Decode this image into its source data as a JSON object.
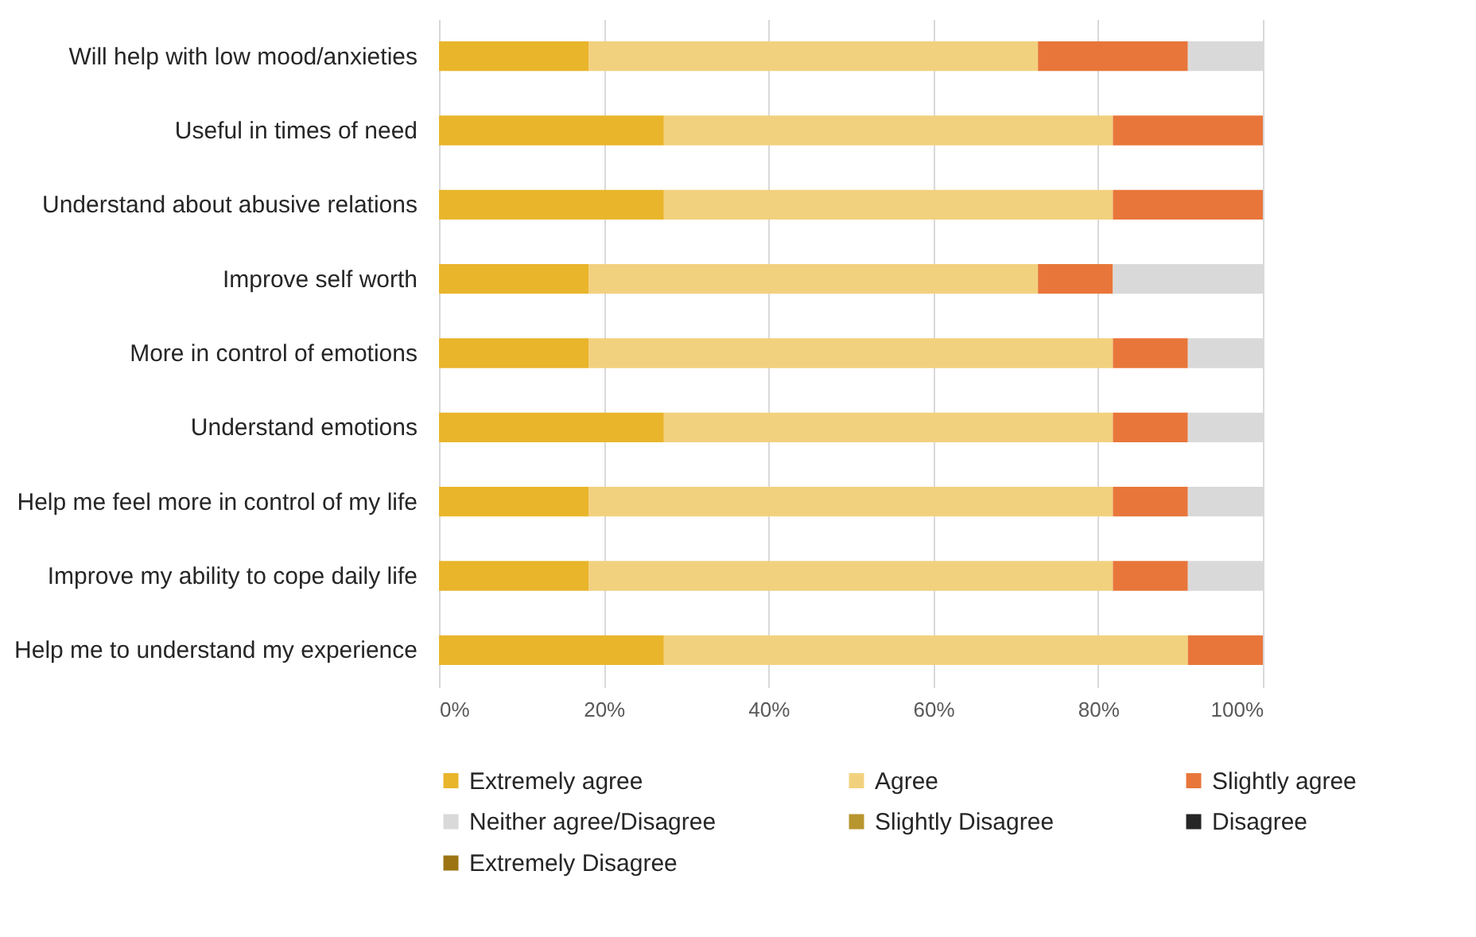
{
  "chart_data": {
    "type": "bar",
    "orientation": "horizontal",
    "stacked": true,
    "categories": [
      "Will help with low mood/anxieties",
      "Useful in times of need",
      "Understand about abusive relations",
      "Improve self worth",
      "More in control of emotions",
      "Understand emotions",
      "Help me feel more in control of my life",
      "Improve my ability to cope daily life",
      "Help me to understand my experience"
    ],
    "series": [
      {
        "name": "Extremely agree",
        "color": "#e9b52b",
        "values": [
          18.2,
          27.3,
          27.3,
          18.2,
          18.2,
          27.3,
          18.2,
          18.2,
          27.3
        ]
      },
      {
        "name": "Agree",
        "color": "#f2d17e",
        "values": [
          54.5,
          54.5,
          54.5,
          54.5,
          63.6,
          54.5,
          63.6,
          63.6,
          63.6
        ]
      },
      {
        "name": "Slightly agree",
        "color": "#e8763a",
        "values": [
          18.2,
          18.2,
          18.2,
          9.1,
          9.1,
          9.1,
          9.1,
          9.1,
          9.1
        ]
      },
      {
        "name": "Neither agree/Disagree",
        "color": "#d9d9d9",
        "values": [
          9.1,
          0,
          0,
          18.2,
          9.1,
          9.1,
          9.1,
          9.1,
          0
        ]
      },
      {
        "name": "Slightly Disagree",
        "color": "#b8962e",
        "values": [
          0,
          0,
          0,
          0,
          0,
          0,
          0,
          0,
          0
        ]
      },
      {
        "name": "Disagree",
        "color": "#262626",
        "values": [
          0,
          0,
          0,
          0,
          0,
          0,
          0,
          0,
          0
        ]
      },
      {
        "name": "Extremely Disagree",
        "color": "#9c7413",
        "values": [
          0,
          0,
          0,
          0,
          0,
          0,
          0,
          0,
          0
        ]
      }
    ],
    "xlim": [
      0,
      100
    ],
    "xticks": [
      {
        "value": 0,
        "label": "0%"
      },
      {
        "value": 20,
        "label": "20%"
      },
      {
        "value": 40,
        "label": "40%"
      },
      {
        "value": 60,
        "label": "60%"
      },
      {
        "value": 80,
        "label": "80%"
      },
      {
        "value": 100,
        "label": "100%"
      }
    ],
    "grid": "x",
    "legend": "bottom"
  }
}
